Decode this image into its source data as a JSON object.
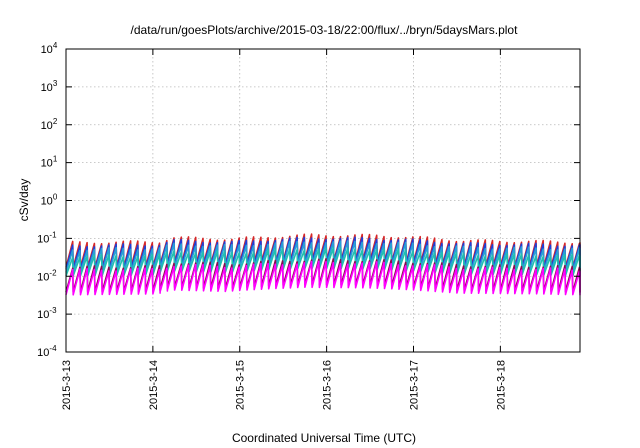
{
  "chart_data": {
    "type": "line",
    "title": "/data/run/goesPlots/archive/2015-03-18/22:00/flux/../bryn/5daysMars.plot",
    "xlabel": "Coordinated Universal Time (UTC)",
    "ylabel": "cSv/day",
    "yscale": "log",
    "ylim": [
      0.0001,
      10000
    ],
    "xlim": [
      "2015-03-13T00:00",
      "2015-03-18T22:00"
    ],
    "grid": true,
    "legend": "none",
    "x_ticks": [
      "2015-3-13",
      "2015-3-14",
      "2015-3-15",
      "2015-3-16",
      "2015-3-17",
      "2015-3-18"
    ],
    "y_ticks": [
      {
        "base": "10",
        "exp": "-4"
      },
      {
        "base": "10",
        "exp": "-3"
      },
      {
        "base": "10",
        "exp": "-2"
      },
      {
        "base": "10",
        "exp": "-1"
      },
      {
        "base": "10",
        "exp": "0"
      },
      {
        "base": "10",
        "exp": "1"
      },
      {
        "base": "10",
        "exp": "2"
      },
      {
        "base": "10",
        "exp": "3"
      },
      {
        "base": "10",
        "exp": "4"
      }
    ],
    "sawtooth_period_hours": 2,
    "series": [
      {
        "color": "#d62728",
        "peak": 0.09,
        "trough": 0.02
      },
      {
        "color": "#1f3fd6",
        "peak": 0.075,
        "trough": 0.018
      },
      {
        "color": "#2a9fd6",
        "peak": 0.06,
        "trough": 0.015
      },
      {
        "color": "#20c0b0",
        "peak": 0.04,
        "trough": 0.012
      },
      {
        "color": "#8b0a50",
        "peak": 0.02,
        "trough": 0.0045
      },
      {
        "color": "#ff00ff",
        "peak": 0.017,
        "trough": 0.0038
      }
    ],
    "envelope": [
      {
        "t": "2015-03-13T00:00",
        "factor": 0.85
      },
      {
        "t": "2015-03-14T00:00",
        "factor": 0.9
      },
      {
        "t": "2015-03-14T04:00",
        "factor": 1.15
      },
      {
        "t": "2015-03-14T20:00",
        "factor": 1.05
      },
      {
        "t": "2015-03-15T06:00",
        "factor": 1.2
      },
      {
        "t": "2015-03-15T18:00",
        "factor": 1.35
      },
      {
        "t": "2015-03-16T12:00",
        "factor": 1.3
      },
      {
        "t": "2015-03-17T00:00",
        "factor": 1.15
      },
      {
        "t": "2015-03-17T12:00",
        "factor": 0.95
      },
      {
        "t": "2015-03-18T12:00",
        "factor": 0.9
      },
      {
        "t": "2015-03-18T22:00",
        "factor": 0.85
      }
    ]
  }
}
